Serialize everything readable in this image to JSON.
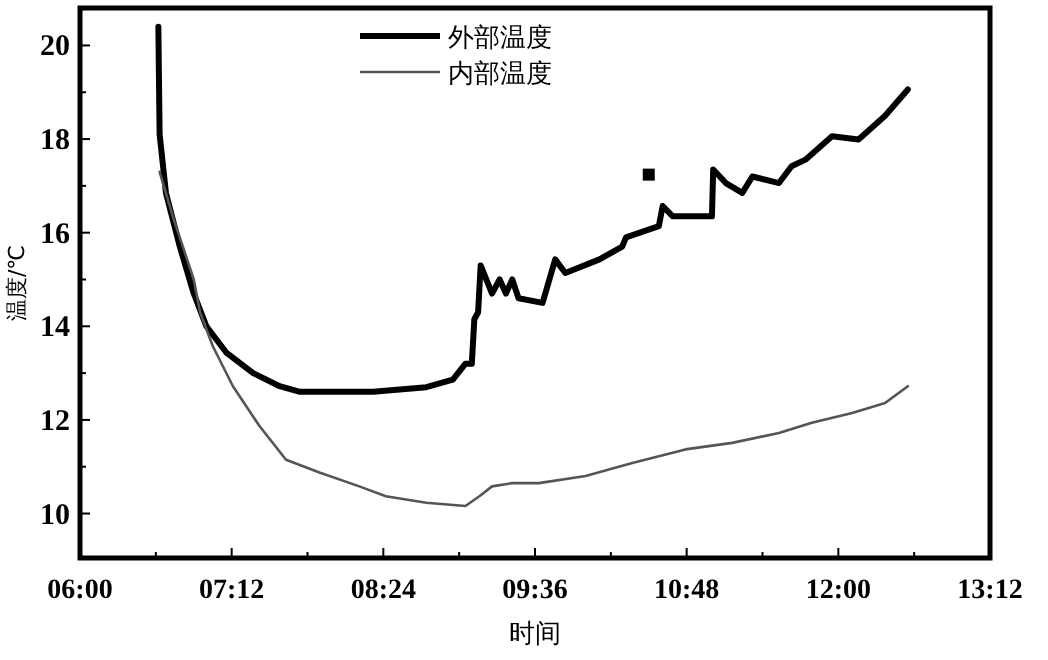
{
  "chart_data": {
    "type": "line",
    "xlabel": "时间",
    "ylabel": "温度/℃",
    "xlim": [
      6,
      13.2
    ],
    "ylim": [
      9.05,
      20.8
    ],
    "xticks": [
      {
        "value": 6,
        "label": "06:00"
      },
      {
        "value": 6.6,
        "label": null
      },
      {
        "value": 7.2,
        "label": "07:12"
      },
      {
        "value": 7.8,
        "label": null
      },
      {
        "value": 8.4,
        "label": "08:24"
      },
      {
        "value": 9,
        "label": null
      },
      {
        "value": 9.6,
        "label": "09:36"
      },
      {
        "value": 10.2,
        "label": null
      },
      {
        "value": 10.8,
        "label": "10:48"
      },
      {
        "value": 11.4,
        "label": null
      },
      {
        "value": 12,
        "label": "12:00"
      },
      {
        "value": 12.6,
        "label": null
      },
      {
        "value": 13.2,
        "label": "13:12"
      }
    ],
    "yticks": [
      10,
      {
        "value": 11,
        "label": null
      },
      12,
      {
        "value": 13,
        "label": null
      },
      14,
      {
        "value": 15,
        "label": null
      },
      16,
      {
        "value": 17,
        "label": null
      },
      18,
      {
        "value": 19,
        "label": null
      },
      20
    ],
    "grid": false,
    "legend": "top",
    "marker": "none",
    "line_style": "solid",
    "series": [
      {
        "name": "外部温度",
        "color": "#000000",
        "x": [
          6.62,
          6.63,
          6.68,
          6.79,
          6.9,
          7.0,
          7.16,
          7.37,
          7.58,
          7.74,
          8.32,
          8.74,
          8.95,
          9.05,
          9.1,
          9.12,
          9.15,
          9.17,
          9.26,
          9.32,
          9.37,
          9.42,
          9.47,
          9.66,
          9.76,
          9.84,
          10.11,
          10.29,
          10.32,
          10.58,
          10.61,
          10.69,
          11.0,
          11.01,
          11.11,
          11.24,
          11.32,
          11.53,
          11.63,
          11.74,
          11.95,
          12.16,
          12.37,
          12.55
        ],
        "values": [
          20.4,
          18.1,
          16.85,
          15.7,
          14.7,
          14.0,
          13.43,
          13.0,
          12.72,
          12.6,
          12.6,
          12.7,
          12.86,
          13.2,
          13.2,
          14.15,
          14.3,
          15.3,
          14.7,
          15.0,
          14.7,
          15.0,
          14.6,
          14.5,
          15.43,
          15.14,
          15.43,
          15.7,
          15.9,
          16.14,
          16.57,
          16.35,
          16.35,
          17.35,
          17.06,
          16.85,
          17.2,
          17.06,
          17.42,
          17.56,
          18.06,
          17.99,
          18.5,
          19.06
        ]
      },
      {
        "name": "内部温度",
        "color": "#555555",
        "x": [
          6.63,
          6.74,
          6.9,
          6.95,
          7.05,
          7.21,
          7.42,
          7.63,
          7.9,
          8.21,
          8.42,
          8.74,
          9.05,
          9.16,
          9.26,
          9.42,
          9.63,
          10.0,
          10.37,
          10.79,
          11.16,
          11.53,
          11.79,
          12.11,
          12.37,
          12.55
        ],
        "values": [
          17.3,
          16.3,
          15.0,
          14.3,
          13.58,
          12.72,
          11.87,
          11.15,
          10.87,
          10.58,
          10.37,
          10.23,
          10.16,
          10.37,
          10.58,
          10.65,
          10.65,
          10.8,
          11.08,
          11.37,
          11.51,
          11.72,
          11.94,
          12.15,
          12.36,
          12.72
        ]
      },
      {
        "type": "scatter",
        "marker": "square",
        "color": "#000000",
        "x": [
          10.5
        ],
        "values": [
          17.24
        ]
      }
    ]
  }
}
